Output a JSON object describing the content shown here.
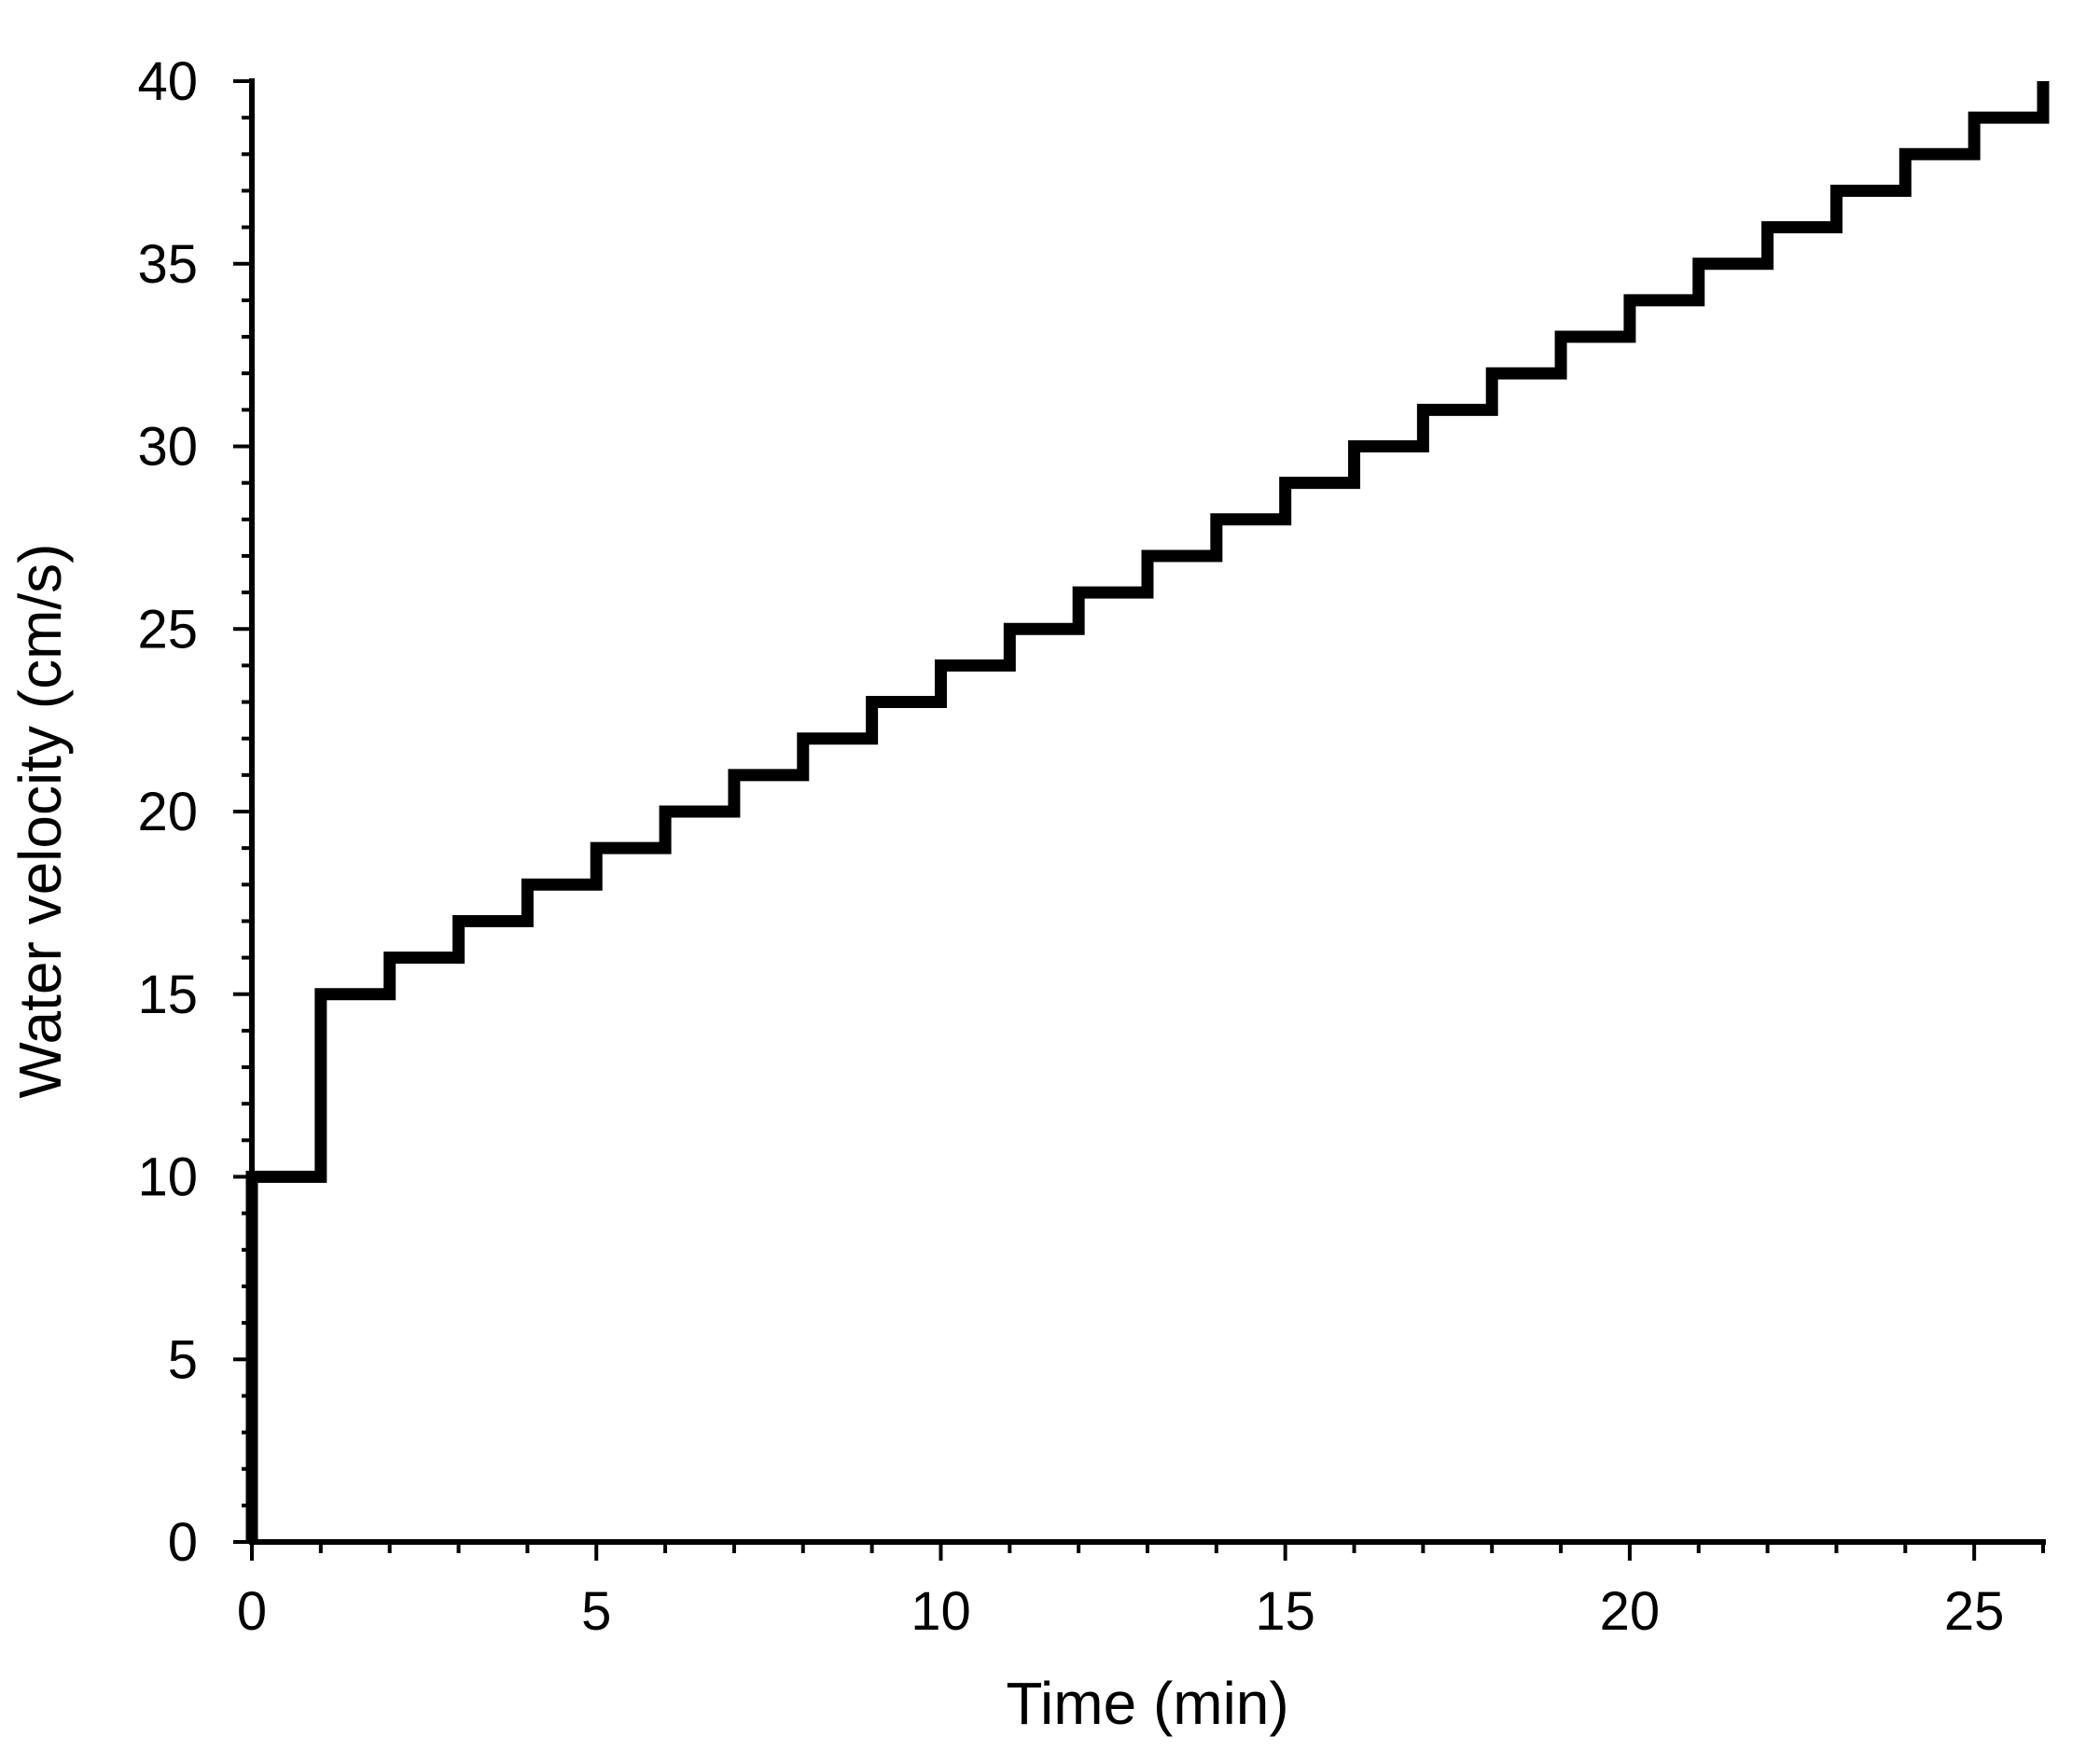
{
  "chart_data": {
    "type": "line",
    "subtype": "step",
    "xlabel": "Time (min)",
    "ylabel": "Water velocity (cm/s)",
    "xlim": [
      0,
      26
    ],
    "ylim": [
      0,
      40
    ],
    "x_major_ticks": [
      0,
      5,
      10,
      15,
      20,
      25
    ],
    "x_tick_labels": [
      "0",
      "5",
      "10",
      "15",
      "20",
      "25"
    ],
    "x_minor_step": 1,
    "y_major_ticks": [
      0,
      5,
      10,
      15,
      20,
      25,
      30,
      35,
      40
    ],
    "y_tick_labels": [
      "0",
      "5",
      "10",
      "15",
      "20",
      "25",
      "30",
      "35",
      "40"
    ],
    "y_minor_step": 1,
    "grid": false,
    "legend": "none",
    "line_color": "#000000",
    "series": [
      {
        "x": [
          0,
          1,
          2,
          3,
          4,
          5,
          6,
          7,
          8,
          9,
          10,
          11,
          12,
          13,
          14,
          15,
          16,
          17,
          18,
          19,
          20,
          21,
          22,
          23,
          24,
          25,
          26
        ],
        "values": [
          10,
          15,
          16,
          17,
          18,
          19,
          20,
          21,
          22,
          23,
          24,
          25,
          26,
          27,
          28,
          29,
          30,
          31,
          32,
          33,
          34,
          35,
          36,
          37,
          38,
          39,
          40
        ]
      }
    ]
  }
}
